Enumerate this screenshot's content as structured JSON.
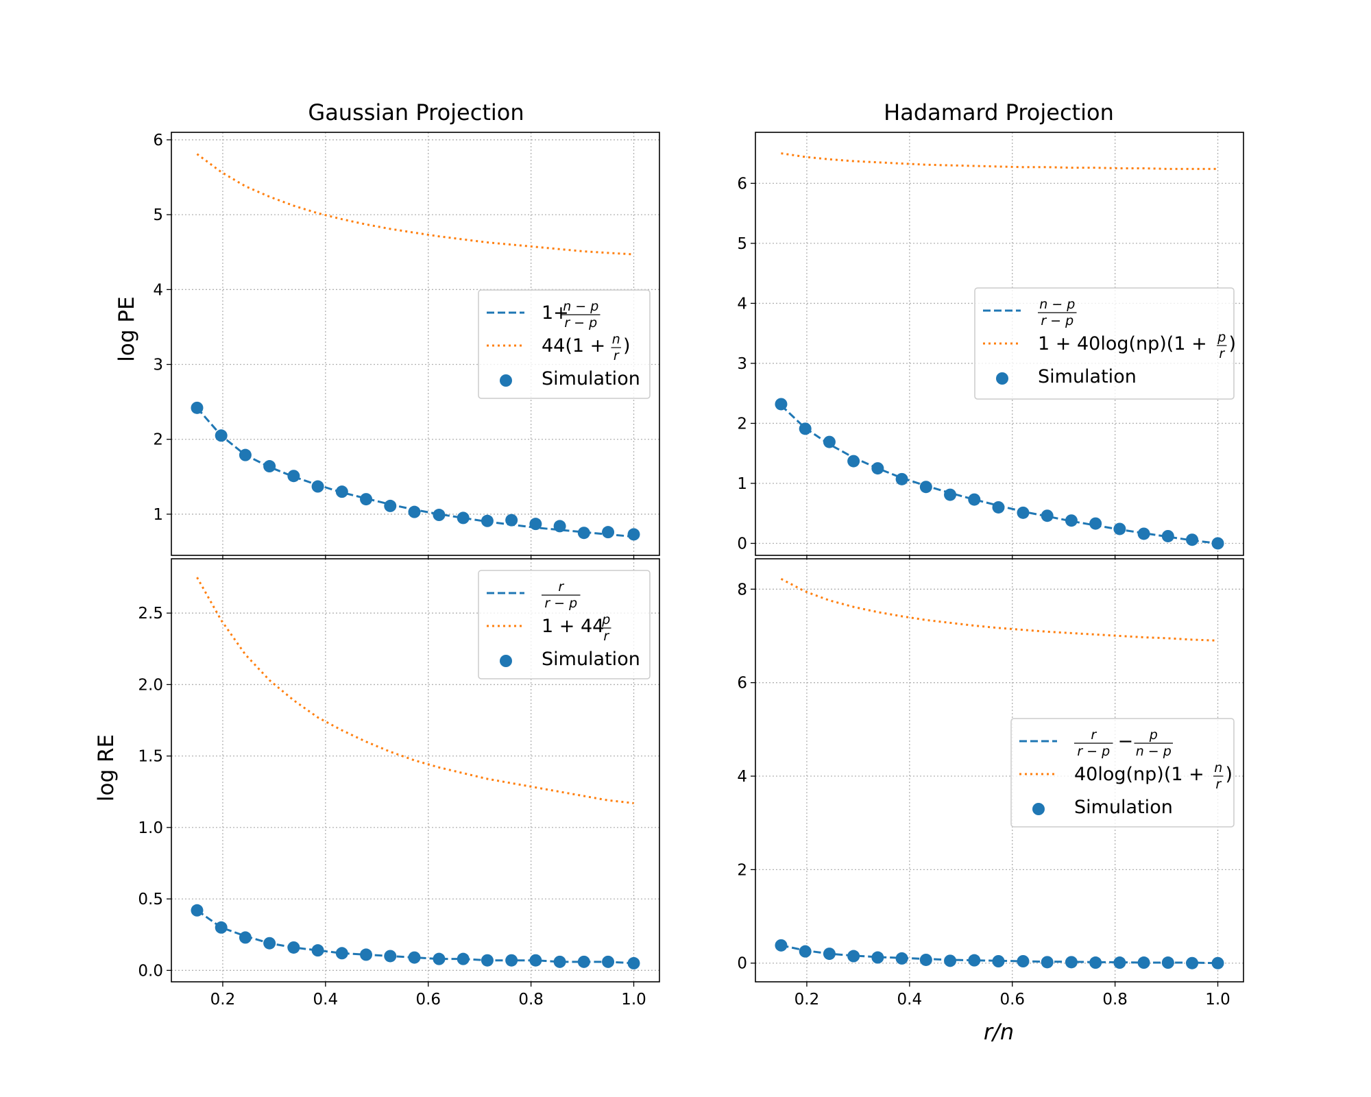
{
  "colors": {
    "series_main": "#1f77b4",
    "series_bound": "#ff7f0e",
    "grid": "#b0b0b0",
    "background": "#ffffff"
  },
  "figure": {
    "xlabel": "r/n",
    "ylabel_top": "log PE",
    "ylabel_bottom": "log RE",
    "title_left": "Gaussian Projection",
    "title_right": "Hadamard Projection"
  },
  "chart_data": [
    {
      "id": "gaussian_pe",
      "type": "line",
      "title": "Gaussian Projection",
      "xlabel": "",
      "ylabel": "log PE",
      "xlim": [
        0.1,
        1.05
      ],
      "ylim": [
        0.45,
        6.1
      ],
      "xticks": [
        0.2,
        0.4,
        0.6,
        0.8,
        1.0
      ],
      "xtick_labels": [
        "",
        "",
        "",
        "",
        ""
      ],
      "yticks": [
        1,
        2,
        3,
        4,
        5,
        6
      ],
      "ytick_labels": [
        "1",
        "2",
        "3",
        "4",
        "5",
        "6"
      ],
      "grid": true,
      "legend_position": "center-right",
      "x": [
        0.15,
        0.197,
        0.244,
        0.291,
        0.338,
        0.385,
        0.432,
        0.479,
        0.526,
        0.573,
        0.621,
        0.668,
        0.715,
        0.762,
        0.809,
        0.856,
        0.903,
        0.95,
        1.0
      ],
      "series": [
        {
          "name": "1+\\frac{n-p}{r-p}",
          "style": "dashed",
          "color": "#1f77b4",
          "values": [
            2.42,
            2.05,
            1.79,
            1.63,
            1.5,
            1.39,
            1.29,
            1.21,
            1.13,
            1.06,
            1.0,
            0.95,
            0.9,
            0.86,
            0.82,
            0.79,
            0.76,
            0.73,
            0.7
          ]
        },
        {
          "name": "44(1+\\frac{n}{r})",
          "style": "dotted",
          "color": "#ff7f0e",
          "values": [
            5.81,
            5.57,
            5.38,
            5.24,
            5.12,
            5.02,
            4.94,
            4.87,
            4.81,
            4.76,
            4.71,
            4.67,
            4.63,
            4.6,
            4.57,
            4.54,
            4.51,
            4.49,
            4.47
          ]
        },
        {
          "name": "Simulation",
          "style": "marker",
          "color": "#1f77b4",
          "values": [
            2.42,
            2.05,
            1.79,
            1.64,
            1.51,
            1.37,
            1.3,
            1.2,
            1.11,
            1.03,
            0.99,
            0.95,
            0.91,
            0.92,
            0.87,
            0.84,
            0.75,
            0.76,
            0.73
          ]
        }
      ],
      "legend_entries": [
        {
          "kind": "dashed",
          "text": "",
          "frac": [
            "n − p",
            "r − p"
          ],
          "pre": "1+",
          "post": ""
        },
        {
          "kind": "dotted",
          "text": "",
          "frac": [
            "n",
            "r"
          ],
          "pre": "44(1 + ",
          "post": ")"
        },
        {
          "kind": "marker",
          "text": "Simulation"
        }
      ]
    },
    {
      "id": "hadamard_pe",
      "type": "line",
      "title": "Hadamard Projection",
      "xlabel": "",
      "ylabel": "",
      "xlim": [
        0.1,
        1.05
      ],
      "ylim": [
        -0.2,
        6.85
      ],
      "xticks": [
        0.2,
        0.4,
        0.6,
        0.8,
        1.0
      ],
      "xtick_labels": [
        "",
        "",
        "",
        "",
        ""
      ],
      "yticks": [
        0,
        1,
        2,
        3,
        4,
        5,
        6
      ],
      "ytick_labels": [
        "0",
        "1",
        "2",
        "3",
        "4",
        "5",
        "6"
      ],
      "grid": true,
      "legend_position": "center-right",
      "x": [
        0.15,
        0.197,
        0.244,
        0.291,
        0.338,
        0.385,
        0.432,
        0.479,
        0.526,
        0.573,
        0.621,
        0.668,
        0.715,
        0.762,
        0.809,
        0.856,
        0.903,
        0.95,
        1.0
      ],
      "series": [
        {
          "name": "\\frac{n-p}{r-p}",
          "style": "dashed",
          "color": "#1f77b4",
          "values": [
            2.3,
            1.92,
            1.65,
            1.43,
            1.25,
            1.09,
            0.96,
            0.84,
            0.73,
            0.63,
            0.53,
            0.45,
            0.37,
            0.3,
            0.23,
            0.17,
            0.11,
            0.05,
            0.0
          ]
        },
        {
          "name": "1+40log(np)(1+\\frac{p}{r})",
          "style": "dotted",
          "color": "#ff7f0e",
          "values": [
            6.5,
            6.44,
            6.4,
            6.37,
            6.35,
            6.33,
            6.31,
            6.3,
            6.29,
            6.28,
            6.27,
            6.27,
            6.26,
            6.26,
            6.25,
            6.25,
            6.24,
            6.24,
            6.24
          ]
        },
        {
          "name": "Simulation",
          "style": "marker",
          "color": "#1f77b4",
          "values": [
            2.32,
            1.91,
            1.69,
            1.37,
            1.25,
            1.07,
            0.94,
            0.81,
            0.73,
            0.6,
            0.51,
            0.46,
            0.38,
            0.33,
            0.24,
            0.16,
            0.12,
            0.06,
            0.0
          ]
        }
      ],
      "legend_entries": [
        {
          "kind": "dashed",
          "text": "",
          "frac": [
            "n − p",
            "r − p"
          ],
          "pre": "",
          "post": ""
        },
        {
          "kind": "dotted",
          "text": "",
          "frac": [
            "p",
            "r"
          ],
          "pre": "1 + 40log(np)(1 + ",
          "post": ")"
        },
        {
          "kind": "marker",
          "text": "Simulation"
        }
      ]
    },
    {
      "id": "gaussian_re",
      "type": "line",
      "title": "",
      "xlabel": "",
      "ylabel": "log RE",
      "xlim": [
        0.1,
        1.05
      ],
      "ylim": [
        -0.08,
        2.88
      ],
      "xticks": [
        0.2,
        0.4,
        0.6,
        0.8,
        1.0
      ],
      "xtick_labels": [
        "0.2",
        "0.4",
        "0.6",
        "0.8",
        "1.0"
      ],
      "yticks": [
        0.0,
        0.5,
        1.0,
        1.5,
        2.0,
        2.5
      ],
      "ytick_labels": [
        "0.0",
        "0.5",
        "1.0",
        "1.5",
        "2.0",
        "2.5"
      ],
      "grid": true,
      "legend_position": "upper-right",
      "x": [
        0.15,
        0.197,
        0.244,
        0.291,
        0.338,
        0.385,
        0.432,
        0.479,
        0.526,
        0.573,
        0.621,
        0.668,
        0.715,
        0.762,
        0.809,
        0.856,
        0.903,
        0.95,
        1.0
      ],
      "series": [
        {
          "name": "\\frac{r}{r-p}",
          "style": "dashed",
          "color": "#1f77b4",
          "values": [
            0.42,
            0.3,
            0.24,
            0.19,
            0.16,
            0.14,
            0.12,
            0.11,
            0.1,
            0.09,
            0.08,
            0.08,
            0.07,
            0.07,
            0.07,
            0.06,
            0.06,
            0.06,
            0.05
          ]
        },
        {
          "name": "1+44\\frac{p}{r}",
          "style": "dotted",
          "color": "#ff7f0e",
          "values": [
            2.75,
            2.45,
            2.21,
            2.03,
            1.89,
            1.77,
            1.68,
            1.6,
            1.53,
            1.47,
            1.42,
            1.38,
            1.34,
            1.31,
            1.28,
            1.25,
            1.22,
            1.19,
            1.17
          ]
        },
        {
          "name": "Simulation",
          "style": "marker",
          "color": "#1f77b4",
          "values": [
            0.42,
            0.3,
            0.23,
            0.19,
            0.16,
            0.14,
            0.12,
            0.11,
            0.1,
            0.09,
            0.08,
            0.08,
            0.07,
            0.07,
            0.07,
            0.06,
            0.06,
            0.06,
            0.05
          ]
        }
      ],
      "legend_entries": [
        {
          "kind": "dashed",
          "text": "",
          "frac": [
            "r",
            "r − p"
          ],
          "pre": "",
          "post": ""
        },
        {
          "kind": "dotted",
          "text": "",
          "frac": [
            "p",
            "r"
          ],
          "pre": "1 + 44",
          "post": ""
        },
        {
          "kind": "marker",
          "text": "Simulation"
        }
      ]
    },
    {
      "id": "hadamard_re",
      "type": "line",
      "title": "",
      "xlabel": "r/n",
      "ylabel": "",
      "xlim": [
        0.1,
        1.05
      ],
      "ylim": [
        -0.4,
        8.65
      ],
      "xticks": [
        0.2,
        0.4,
        0.6,
        0.8,
        1.0
      ],
      "xtick_labels": [
        "0.2",
        "0.4",
        "0.6",
        "0.8",
        "1.0"
      ],
      "yticks": [
        0,
        2,
        4,
        6,
        8
      ],
      "ytick_labels": [
        "0",
        "2",
        "4",
        "6",
        "8"
      ],
      "grid": true,
      "legend_position": "center-right",
      "x": [
        0.15,
        0.197,
        0.244,
        0.291,
        0.338,
        0.385,
        0.432,
        0.479,
        0.526,
        0.573,
        0.621,
        0.668,
        0.715,
        0.762,
        0.809,
        0.856,
        0.903,
        0.95,
        1.0
      ],
      "series": [
        {
          "name": "\\frac{r}{r-p}-\\frac{p}{n-p}",
          "style": "dashed",
          "color": "#1f77b4",
          "values": [
            0.38,
            0.27,
            0.2,
            0.16,
            0.13,
            0.11,
            0.09,
            0.07,
            0.06,
            0.05,
            0.04,
            0.03,
            0.03,
            0.02,
            0.02,
            0.01,
            0.01,
            0.01,
            0.0
          ]
        },
        {
          "name": "40log(np)(1+\\frac{n}{r})",
          "style": "dotted",
          "color": "#ff7f0e",
          "values": [
            8.22,
            7.95,
            7.76,
            7.62,
            7.51,
            7.42,
            7.34,
            7.28,
            7.22,
            7.17,
            7.13,
            7.09,
            7.06,
            7.03,
            7.0,
            6.97,
            6.95,
            6.92,
            6.9
          ]
        },
        {
          "name": "Simulation",
          "style": "marker",
          "color": "#1f77b4",
          "values": [
            0.38,
            0.25,
            0.2,
            0.15,
            0.12,
            0.1,
            0.07,
            0.05,
            0.06,
            0.04,
            0.04,
            0.02,
            0.02,
            0.01,
            0.01,
            0.01,
            0.01,
            0.0,
            0.0
          ]
        }
      ],
      "legend_entries": [
        {
          "kind": "dashed",
          "text": "",
          "frac": [
            "r",
            "r − p"
          ],
          "pre": "",
          "post": "",
          "frac2": [
            "p",
            "n − p"
          ]
        },
        {
          "kind": "dotted",
          "text": "",
          "frac": [
            "n",
            "r"
          ],
          "pre": "40log(np)(1 + ",
          "post": ")"
        },
        {
          "kind": "marker",
          "text": "Simulation"
        }
      ]
    }
  ]
}
